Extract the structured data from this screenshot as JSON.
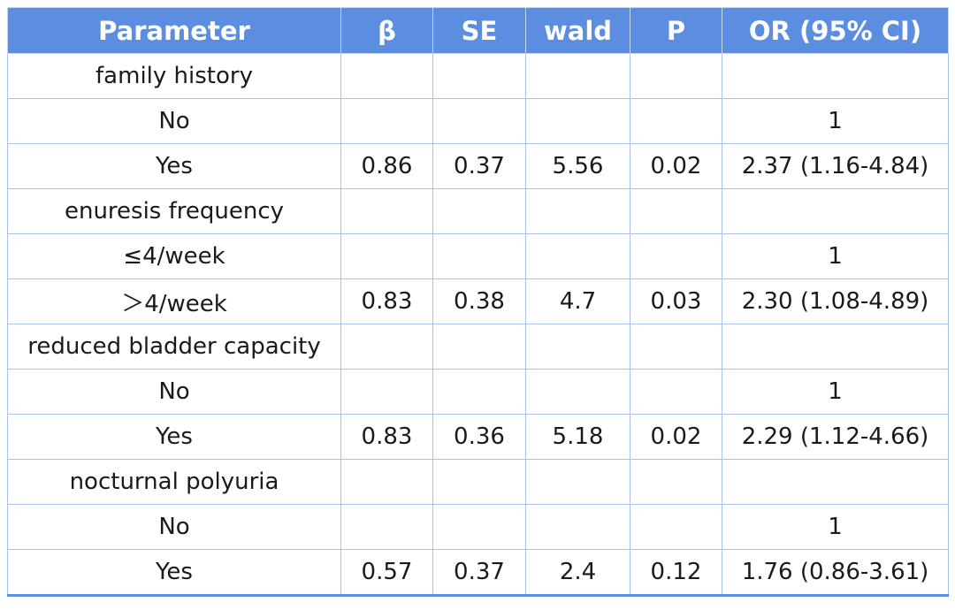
{
  "table": {
    "headers": [
      "Parameter",
      "β",
      "SE",
      "wald",
      "P",
      "OR (95% CI)"
    ],
    "rows": [
      [
        "family history",
        "",
        "",
        "",
        "",
        ""
      ],
      [
        "No",
        "",
        "",
        "",
        "",
        "1"
      ],
      [
        "Yes",
        "0.86",
        "0.37",
        "5.56",
        "0.02",
        "2.37 (1.16-4.84)"
      ],
      [
        "enuresis frequency",
        "",
        "",
        "",
        "",
        ""
      ],
      [
        "≤4/week",
        "",
        "",
        "",
        "",
        "1"
      ],
      [
        "＞4/week",
        "0.83",
        "0.38",
        "4.7",
        "0.03",
        "2.30 (1.08-4.89)"
      ],
      [
        "reduced bladder capacity",
        "",
        "",
        "",
        "",
        ""
      ],
      [
        "No",
        "",
        "",
        "",
        "",
        "1"
      ],
      [
        "Yes",
        "0.83",
        "0.36",
        "5.18",
        "0.02",
        "2.29 (1.12-4.66)"
      ],
      [
        "nocturnal polyuria",
        "",
        "",
        "",
        "",
        ""
      ],
      [
        "No",
        "",
        "",
        "",
        "",
        "1"
      ],
      [
        "Yes",
        "0.57",
        "0.37",
        "2.4",
        "0.12",
        "1.76 (0.86-3.61)"
      ]
    ]
  },
  "colors": {
    "header_bg": "#5b8de0",
    "header_text": "#ffffff",
    "grid_line": "#a9bfe6",
    "body_text": "#1a1a1a"
  }
}
